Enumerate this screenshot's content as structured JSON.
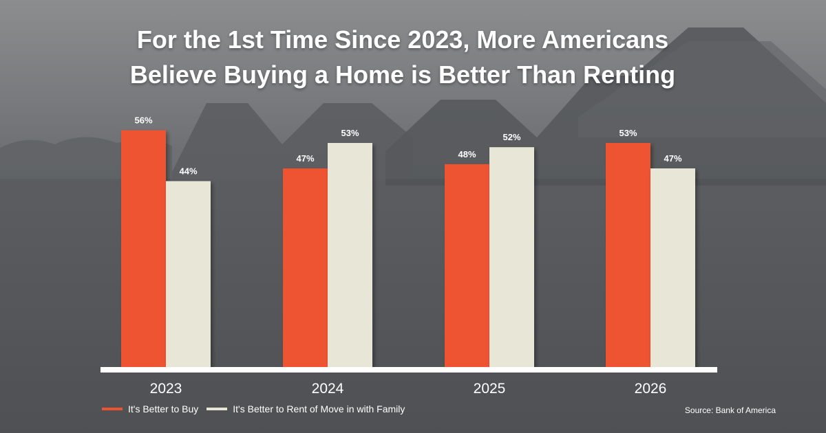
{
  "colors": {
    "buy": "#ee5230",
    "rent": "#e8e6d6",
    "baseline": "#ffffff",
    "text": "#ffffff",
    "background": "#55575a"
  },
  "source": "Source: Bank of America",
  "chart_data": {
    "type": "bar",
    "title": "For the 1st Time Since 2023, More Americans Believe Buying a Home is Better Than Renting",
    "title_lines": [
      "For the 1st Time Since 2023, More Americans",
      "Believe Buying a Home is Better Than Renting"
    ],
    "categories": [
      "2023",
      "2024",
      "2025",
      "2026"
    ],
    "series": [
      {
        "name": "It's Better to Buy",
        "values": [
          56,
          47,
          48,
          53
        ],
        "labels": [
          "56%",
          "47%",
          "48%",
          "53%"
        ]
      },
      {
        "name": "It's Better to Rent of Move in with Family",
        "values": [
          44,
          53,
          52,
          47
        ],
        "labels": [
          "44%",
          "53%",
          "52%",
          "47%"
        ]
      }
    ],
    "unit": "%",
    "ylim": [
      0,
      60
    ],
    "grid": false,
    "legend_position": "bottom-left"
  }
}
